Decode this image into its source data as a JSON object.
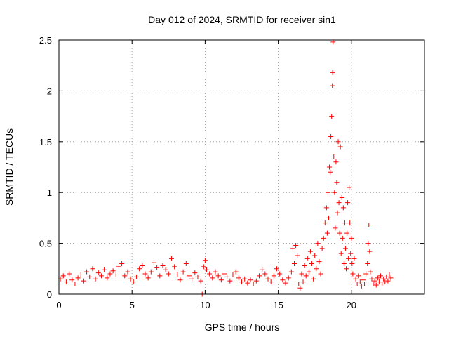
{
  "chart_data": {
    "type": "scatter",
    "title": "Day 012 of 2024, SRMTID for receiver sin1",
    "xlabel": "GPS time / hours",
    "ylabel": "SRMTID / TECUs",
    "xlim": [
      0,
      25
    ],
    "ylim": [
      0,
      2.5
    ],
    "xticks": [
      0,
      5,
      10,
      15,
      20
    ],
    "yticks": [
      0,
      0.5,
      1,
      1.5,
      2,
      2.5
    ],
    "xtick_labels": [
      "0",
      "5",
      "10",
      "15",
      "20"
    ],
    "ytick_labels": [
      "0",
      "0.5",
      "1",
      "1.5",
      "2",
      "2.5"
    ],
    "grid": true,
    "marker": "+",
    "series": [
      {
        "name": "sin1",
        "color": "#ff0000",
        "points": [
          [
            0.1,
            0.15
          ],
          [
            0.3,
            0.18
          ],
          [
            0.5,
            0.12
          ],
          [
            0.7,
            0.2
          ],
          [
            0.9,
            0.14
          ],
          [
            1.1,
            0.1
          ],
          [
            1.3,
            0.16
          ],
          [
            1.5,
            0.19
          ],
          [
            1.7,
            0.13
          ],
          [
            1.9,
            0.22
          ],
          [
            2.1,
            0.17
          ],
          [
            2.3,
            0.25
          ],
          [
            2.5,
            0.15
          ],
          [
            2.7,
            0.21
          ],
          [
            2.9,
            0.18
          ],
          [
            3.1,
            0.24
          ],
          [
            3.3,
            0.16
          ],
          [
            3.5,
            0.2
          ],
          [
            3.7,
            0.23
          ],
          [
            3.9,
            0.19
          ],
          [
            4.1,
            0.27
          ],
          [
            4.3,
            0.3
          ],
          [
            4.5,
            0.18
          ],
          [
            4.7,
            0.22
          ],
          [
            4.9,
            0.15
          ],
          [
            5.1,
            0.12
          ],
          [
            5.3,
            0.17
          ],
          [
            5.5,
            0.25
          ],
          [
            5.7,
            0.28
          ],
          [
            5.9,
            0.2
          ],
          [
            6.1,
            0.16
          ],
          [
            6.3,
            0.22
          ],
          [
            6.5,
            0.31
          ],
          [
            6.7,
            0.26
          ],
          [
            6.9,
            0.18
          ],
          [
            7.1,
            0.28
          ],
          [
            7.3,
            0.24
          ],
          [
            7.5,
            0.2
          ],
          [
            7.7,
            0.35
          ],
          [
            7.9,
            0.27
          ],
          [
            8.1,
            0.19
          ],
          [
            8.3,
            0.14
          ],
          [
            8.5,
            0.22
          ],
          [
            8.7,
            0.3
          ],
          [
            8.9,
            0.18
          ],
          [
            9.1,
            0.15
          ],
          [
            9.3,
            0.21
          ],
          [
            9.5,
            0.17
          ],
          [
            9.7,
            0.13
          ],
          [
            9.8,
            0.0
          ],
          [
            9.9,
            0.27
          ],
          [
            10.0,
            0.33
          ],
          [
            10.1,
            0.24
          ],
          [
            10.3,
            0.2
          ],
          [
            10.5,
            0.16
          ],
          [
            10.7,
            0.22
          ],
          [
            10.9,
            0.18
          ],
          [
            11.1,
            0.14
          ],
          [
            11.3,
            0.2
          ],
          [
            11.5,
            0.17
          ],
          [
            11.7,
            0.13
          ],
          [
            11.9,
            0.19
          ],
          [
            12.1,
            0.22
          ],
          [
            12.3,
            0.16
          ],
          [
            12.5,
            0.12
          ],
          [
            12.7,
            0.15
          ],
          [
            12.9,
            0.11
          ],
          [
            13.1,
            0.14
          ],
          [
            13.3,
            0.1
          ],
          [
            13.5,
            0.13
          ],
          [
            13.7,
            0.18
          ],
          [
            13.9,
            0.24
          ],
          [
            14.1,
            0.2
          ],
          [
            14.3,
            0.15
          ],
          [
            14.5,
            0.12
          ],
          [
            14.7,
            0.18
          ],
          [
            14.9,
            0.25
          ],
          [
            15.1,
            0.2
          ],
          [
            15.3,
            0.14
          ],
          [
            15.5,
            0.11
          ],
          [
            15.7,
            0.16
          ],
          [
            15.9,
            0.22
          ],
          [
            16.0,
            0.45
          ],
          [
            16.1,
            0.3
          ],
          [
            16.2,
            0.48
          ],
          [
            16.3,
            0.38
          ],
          [
            16.4,
            0.1
          ],
          [
            16.5,
            0.06
          ],
          [
            16.6,
            0.2
          ],
          [
            16.7,
            0.12
          ],
          [
            16.8,
            0.28
          ],
          [
            16.9,
            0.18
          ],
          [
            17.0,
            0.35
          ],
          [
            17.1,
            0.22
          ],
          [
            17.2,
            0.42
          ],
          [
            17.3,
            0.3
          ],
          [
            17.4,
            0.15
          ],
          [
            17.5,
            0.38
          ],
          [
            17.6,
            0.25
          ],
          [
            17.7,
            0.5
          ],
          [
            17.8,
            0.32
          ],
          [
            17.9,
            0.2
          ],
          [
            18.0,
            0.45
          ],
          [
            18.1,
            0.55
          ],
          [
            18.2,
            0.7
          ],
          [
            18.3,
            0.85
          ],
          [
            18.35,
            0.6
          ],
          [
            18.4,
            1.0
          ],
          [
            18.45,
            0.75
          ],
          [
            18.5,
            1.25
          ],
          [
            18.55,
            1.2
          ],
          [
            18.6,
            1.55
          ],
          [
            18.65,
            1.75
          ],
          [
            18.7,
            2.05
          ],
          [
            18.72,
            2.18
          ],
          [
            18.75,
            2.48
          ],
          [
            18.8,
            1.35
          ],
          [
            18.85,
            1.0
          ],
          [
            18.9,
            0.65
          ],
          [
            18.95,
            1.3
          ],
          [
            19.0,
            1.1
          ],
          [
            19.05,
            0.8
          ],
          [
            19.1,
            1.5
          ],
          [
            19.15,
            0.9
          ],
          [
            19.2,
            0.6
          ],
          [
            19.25,
            1.45
          ],
          [
            19.3,
            0.4
          ],
          [
            19.35,
            0.95
          ],
          [
            19.4,
            0.55
          ],
          [
            19.45,
            0.85
          ],
          [
            19.5,
            0.3
          ],
          [
            19.55,
            0.7
          ],
          [
            19.6,
            0.45
          ],
          [
            19.65,
            0.25
          ],
          [
            19.7,
            0.6
          ],
          [
            19.75,
            0.9
          ],
          [
            19.8,
            0.35
          ],
          [
            19.85,
            1.05
          ],
          [
            19.9,
            0.7
          ],
          [
            19.95,
            0.4
          ],
          [
            20.0,
            0.55
          ],
          [
            20.05,
            0.3
          ],
          [
            20.1,
            0.2
          ],
          [
            20.2,
            0.35
          ],
          [
            20.3,
            0.15
          ],
          [
            20.4,
            0.1
          ],
          [
            20.5,
            0.18
          ],
          [
            20.6,
            0.12
          ],
          [
            20.7,
            0.08
          ],
          [
            20.8,
            0.14
          ],
          [
            20.9,
            0.1
          ],
          [
            21.0,
            0.2
          ],
          [
            21.1,
            0.3
          ],
          [
            21.15,
            0.5
          ],
          [
            21.2,
            0.68
          ],
          [
            21.25,
            0.42
          ],
          [
            21.3,
            0.22
          ],
          [
            21.4,
            0.15
          ],
          [
            21.5,
            0.1
          ],
          [
            21.6,
            0.13
          ],
          [
            21.7,
            0.09
          ],
          [
            21.8,
            0.16
          ],
          [
            21.9,
            0.12
          ],
          [
            22.0,
            0.18
          ],
          [
            22.1,
            0.1
          ],
          [
            22.2,
            0.15
          ],
          [
            22.3,
            0.12
          ],
          [
            22.4,
            0.17
          ],
          [
            22.5,
            0.13
          ],
          [
            22.6,
            0.19
          ],
          [
            22.7,
            0.16
          ]
        ]
      }
    ]
  }
}
